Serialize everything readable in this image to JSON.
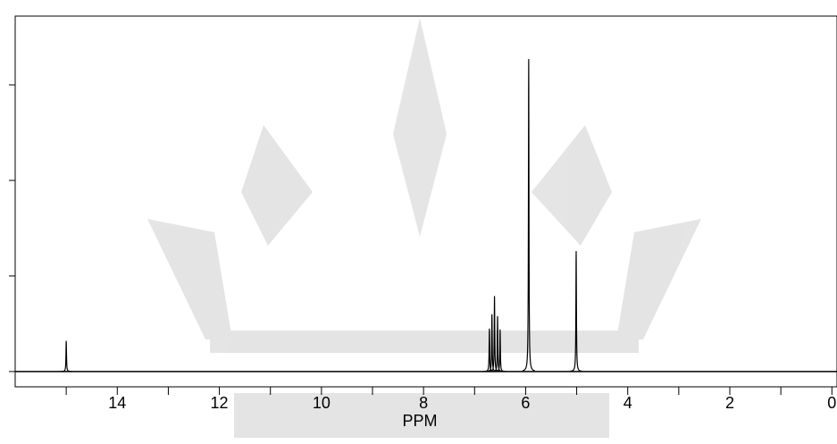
{
  "chart_data": {
    "type": "spectrum",
    "xlabel": "PPM",
    "xlim": [
      16,
      -0.1
    ],
    "xticks": [
      14,
      12,
      10,
      8,
      6,
      4,
      2,
      0
    ],
    "minor_xticks": [
      15,
      13,
      11,
      9,
      7,
      5,
      3,
      1
    ],
    "ylim": [
      -0.16,
      3.72
    ],
    "yticks": [
      0,
      1,
      2,
      3
    ],
    "color": "#000000",
    "peaks": {
      "ppm": [
        15.0,
        6.71,
        6.66,
        6.61,
        6.55,
        6.5,
        5.94,
        5.01
      ],
      "intensity": [
        0.32,
        0.45,
        0.6,
        0.79,
        0.58,
        0.44,
        3.27,
        1.26
      ]
    }
  }
}
